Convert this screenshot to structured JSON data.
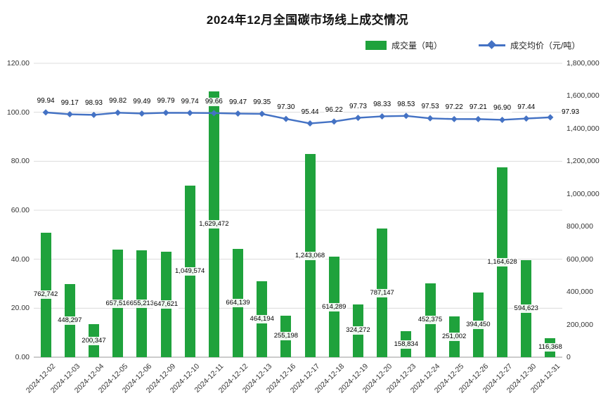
{
  "title": "2024年12月全国碳市场线上成交情况",
  "legend": {
    "bar_label": "成交量（吨）",
    "line_label": "成交均价（元/吨）"
  },
  "colors": {
    "bar": "#1FA23C",
    "line": "#4472C4",
    "grid": "#DCDCDC",
    "axis_line": "#9A9A9A",
    "text": "#333333"
  },
  "chart_data": {
    "type": "combo",
    "title": "2024年12月全国碳市场线上成交情况",
    "grid": true,
    "legend_position": "top-right",
    "categories": [
      "2024-12-02",
      "2024-12-03",
      "2024-12-04",
      "2024-12-05",
      "2024-12-06",
      "2024-12-09",
      "2024-12-10",
      "2024-12-11",
      "2024-12-12",
      "2024-12-13",
      "2024-12-16",
      "2024-12-17",
      "2024-12-18",
      "2024-12-19",
      "2024-12-20",
      "2024-12-23",
      "2024-12-24",
      "2024-12-25",
      "2024-12-26",
      "2024-12-27",
      "2024-12-30",
      "2024-12-31"
    ],
    "series": [
      {
        "name": "成交量（吨）",
        "type": "bar",
        "axis": "right",
        "values": [
          762742,
          448297,
          200347,
          657516,
          655213,
          647621,
          1049574,
          1629472,
          664139,
          464194,
          255198,
          1243068,
          614289,
          324272,
          787147,
          158834,
          452375,
          251002,
          394450,
          1164628,
          594623,
          116368
        ],
        "labels": [
          "762,742",
          "448,297",
          "200,347",
          "657,516",
          "655,213",
          "647,621",
          "1,049,574",
          "1,629,472",
          "664,139",
          "464,194",
          "255,198",
          "1,243,068",
          "614,289",
          "324,272",
          "787,147",
          "158,834",
          "452,375",
          "251,002",
          "394,450",
          "1,164,628",
          "594,623",
          "116,368"
        ]
      },
      {
        "name": "成交均价（元/吨）",
        "type": "line",
        "axis": "left",
        "values": [
          99.94,
          99.17,
          98.93,
          99.82,
          99.49,
          99.79,
          99.74,
          99.66,
          99.47,
          99.35,
          97.3,
          95.44,
          96.22,
          97.73,
          98.33,
          98.53,
          97.53,
          97.22,
          97.21,
          96.9,
          97.44,
          97.93
        ],
        "labels": [
          "99.94",
          "99.17",
          "98.93",
          "99.82",
          "99.49",
          "99.79",
          "99.74",
          "99.66",
          "99.47",
          "99.35",
          "97.30",
          "95.44",
          "96.22",
          "97.73",
          "98.33",
          "98.53",
          "97.53",
          "97.22",
          "97.21",
          "96.90",
          "97.44",
          "97.93"
        ]
      }
    ],
    "left_axis": {
      "min": 0,
      "max": 120,
      "step": 20,
      "tick_labels": [
        "0.00",
        "20.00",
        "40.00",
        "60.00",
        "80.00",
        "100.00",
        "120.00"
      ]
    },
    "right_axis": {
      "min": 0,
      "max": 1800000,
      "step": 200000,
      "tick_labels": [
        "0",
        "200,000",
        "400,000",
        "600,000",
        "800,000",
        "1,000,000",
        "1,200,000",
        "1,400,000",
        "1,600,000",
        "1,800,000"
      ]
    }
  }
}
